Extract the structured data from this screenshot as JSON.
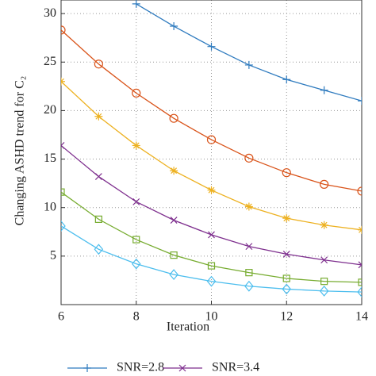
{
  "chart_data": {
    "type": "line",
    "xlabel": "Iteration",
    "ylabel": "Changing ASHD trend for C₂",
    "x": [
      6,
      7,
      8,
      9,
      10,
      11,
      12,
      13,
      14
    ],
    "xlim": [
      6,
      14
    ],
    "xticks": [
      6,
      8,
      10,
      12,
      14
    ],
    "ylim": [
      0,
      31.4
    ],
    "yticks": [
      5,
      10,
      15,
      20,
      25,
      30
    ],
    "grid": true,
    "series": [
      {
        "name": "SNR=2.8",
        "color": "#2f7bbf",
        "marker": "plus",
        "values": [
          null,
          null,
          31.0,
          28.7,
          26.6,
          24.7,
          23.2,
          22.1,
          21.0
        ]
      },
      {
        "color": "#d95319",
        "marker": "circle",
        "values": [
          28.3,
          24.8,
          21.8,
          19.2,
          17.0,
          15.1,
          13.6,
          12.4,
          11.7
        ]
      },
      {
        "color": "#edb120",
        "marker": "star",
        "values": [
          23.0,
          19.4,
          16.4,
          13.8,
          11.8,
          10.1,
          8.9,
          8.2,
          7.7
        ]
      },
      {
        "name": "SNR=3.4",
        "color": "#7e2f8e",
        "marker": "cross",
        "values": [
          16.4,
          13.2,
          10.6,
          8.7,
          7.2,
          6.0,
          5.2,
          4.6,
          4.1
        ]
      },
      {
        "color": "#77ac30",
        "marker": "square",
        "values": [
          11.6,
          8.8,
          6.7,
          5.1,
          4.0,
          3.3,
          2.7,
          2.4,
          2.3
        ]
      },
      {
        "color": "#4dbeee",
        "marker": "diamond",
        "values": [
          8.1,
          5.7,
          4.2,
          3.1,
          2.4,
          1.9,
          1.6,
          1.4,
          1.3
        ]
      }
    ]
  }
}
